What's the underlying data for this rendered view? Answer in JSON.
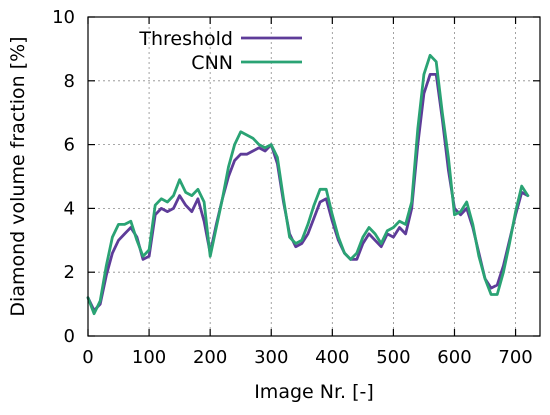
{
  "chart_data": {
    "type": "line",
    "title": "",
    "xlabel": "Image Nr. [-]",
    "ylabel": "Diamond volume fraction [%]",
    "xlim": [
      0,
      740
    ],
    "ylim": [
      0,
      10
    ],
    "xticks": [
      0,
      100,
      200,
      300,
      400,
      500,
      600,
      700
    ],
    "yticks": [
      0,
      2,
      4,
      6,
      8,
      10
    ],
    "grid": true,
    "legend_position": "top-left",
    "series": [
      {
        "name": "Threshold",
        "color": "#5e3c99",
        "x": [
          0,
          10,
          20,
          30,
          40,
          50,
          60,
          70,
          80,
          90,
          100,
          110,
          120,
          130,
          140,
          150,
          160,
          170,
          180,
          190,
          200,
          210,
          220,
          230,
          240,
          250,
          260,
          270,
          280,
          290,
          300,
          310,
          320,
          330,
          340,
          350,
          360,
          370,
          380,
          390,
          400,
          410,
          420,
          430,
          440,
          450,
          460,
          470,
          480,
          490,
          500,
          510,
          520,
          530,
          540,
          550,
          560,
          570,
          580,
          590,
          600,
          610,
          620,
          630,
          640,
          650,
          660,
          670,
          680,
          690,
          700,
          710,
          720
        ],
        "y": [
          1.2,
          0.8,
          1.0,
          1.9,
          2.6,
          3.0,
          3.2,
          3.4,
          3.1,
          2.4,
          2.5,
          3.8,
          4.0,
          3.9,
          4.0,
          4.4,
          4.1,
          3.9,
          4.3,
          3.6,
          2.6,
          3.5,
          4.3,
          5.0,
          5.5,
          5.7,
          5.7,
          5.8,
          5.9,
          5.8,
          6.0,
          5.4,
          4.2,
          3.2,
          2.8,
          2.9,
          3.2,
          3.7,
          4.2,
          4.3,
          3.6,
          3.0,
          2.6,
          2.4,
          2.4,
          2.9,
          3.2,
          3.0,
          2.8,
          3.2,
          3.1,
          3.4,
          3.2,
          4.0,
          6.0,
          7.6,
          8.2,
          8.2,
          6.8,
          5.2,
          4.0,
          3.8,
          4.0,
          3.4,
          2.6,
          1.8,
          1.5,
          1.6,
          2.2,
          3.0,
          3.8,
          4.5,
          4.4
        ]
      },
      {
        "name": "CNN",
        "color": "#2aa374",
        "x": [
          0,
          10,
          20,
          30,
          40,
          50,
          60,
          70,
          80,
          90,
          100,
          110,
          120,
          130,
          140,
          150,
          160,
          170,
          180,
          190,
          200,
          210,
          220,
          230,
          240,
          250,
          260,
          270,
          280,
          290,
          300,
          310,
          320,
          330,
          340,
          350,
          360,
          370,
          380,
          390,
          400,
          410,
          420,
          430,
          440,
          450,
          460,
          470,
          480,
          490,
          500,
          510,
          520,
          530,
          540,
          550,
          560,
          570,
          580,
          590,
          600,
          610,
          620,
          630,
          640,
          650,
          660,
          670,
          680,
          690,
          700,
          710,
          720
        ],
        "y": [
          1.2,
          0.7,
          1.1,
          2.2,
          3.1,
          3.5,
          3.5,
          3.6,
          3.0,
          2.5,
          2.7,
          4.1,
          4.3,
          4.2,
          4.4,
          4.9,
          4.5,
          4.4,
          4.6,
          4.2,
          2.5,
          3.4,
          4.3,
          5.3,
          6.0,
          6.4,
          6.3,
          6.2,
          6.0,
          5.9,
          6.0,
          5.6,
          4.3,
          3.1,
          2.9,
          3.0,
          3.5,
          4.1,
          4.6,
          4.6,
          3.8,
          3.1,
          2.6,
          2.4,
          2.6,
          3.1,
          3.4,
          3.2,
          2.9,
          3.3,
          3.4,
          3.6,
          3.5,
          4.2,
          6.5,
          8.2,
          8.8,
          8.6,
          7.0,
          5.6,
          3.8,
          3.9,
          4.2,
          3.5,
          2.5,
          1.8,
          1.3,
          1.3,
          2.0,
          2.9,
          3.9,
          4.7,
          4.4
        ]
      }
    ]
  }
}
